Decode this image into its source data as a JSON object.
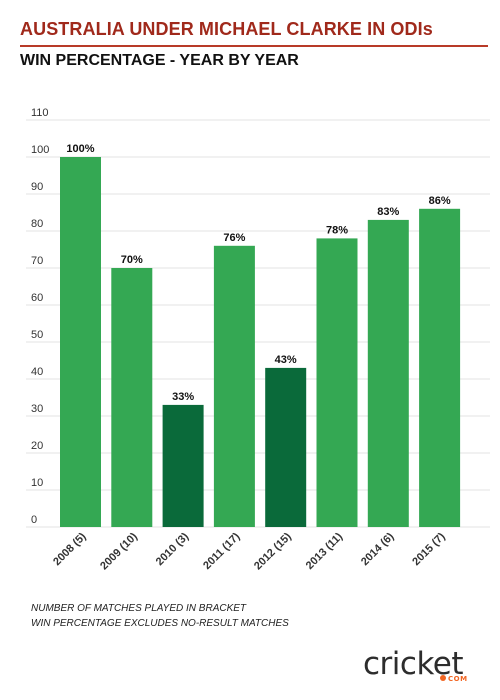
{
  "header": {
    "title": "AUSTRALIA UNDER MICHAEL CLARKE IN ODIs",
    "subtitle": "WIN PERCENTAGE - YEAR BY YEAR"
  },
  "notes": [
    "NUMBER OF MATCHES PLAYED IN BRACKET",
    "WIN PERCENTAGE EXCLUDES NO-RESULT MATCHES"
  ],
  "logo": {
    "word": "cricket",
    "sub": "COM"
  },
  "colors": {
    "bar": "#34a853",
    "bar_low": "#0a6a3a",
    "title": "#a0291b"
  },
  "chart_data": {
    "type": "bar",
    "title": "WIN PERCENTAGE - YEAR BY YEAR",
    "xlabel": "",
    "ylabel": "",
    "categories": [
      "2008 (5)",
      "2009 (10)",
      "2010 (3)",
      "2011 (17)",
      "2012 (15)",
      "2013 (11)",
      "2014 (6)",
      "2015 (7)"
    ],
    "values": [
      100,
      70,
      33,
      76,
      43,
      78,
      83,
      86
    ],
    "labels": [
      "100%",
      "70%",
      "33%",
      "76%",
      "43%",
      "78%",
      "83%",
      "86%"
    ],
    "highlight": [
      false,
      false,
      true,
      false,
      true,
      false,
      false,
      false
    ],
    "ylim": [
      0,
      110
    ],
    "yticks": [
      0,
      10,
      20,
      30,
      40,
      50,
      60,
      70,
      80,
      90,
      100,
      110
    ],
    "grid": true,
    "legend": "none"
  }
}
